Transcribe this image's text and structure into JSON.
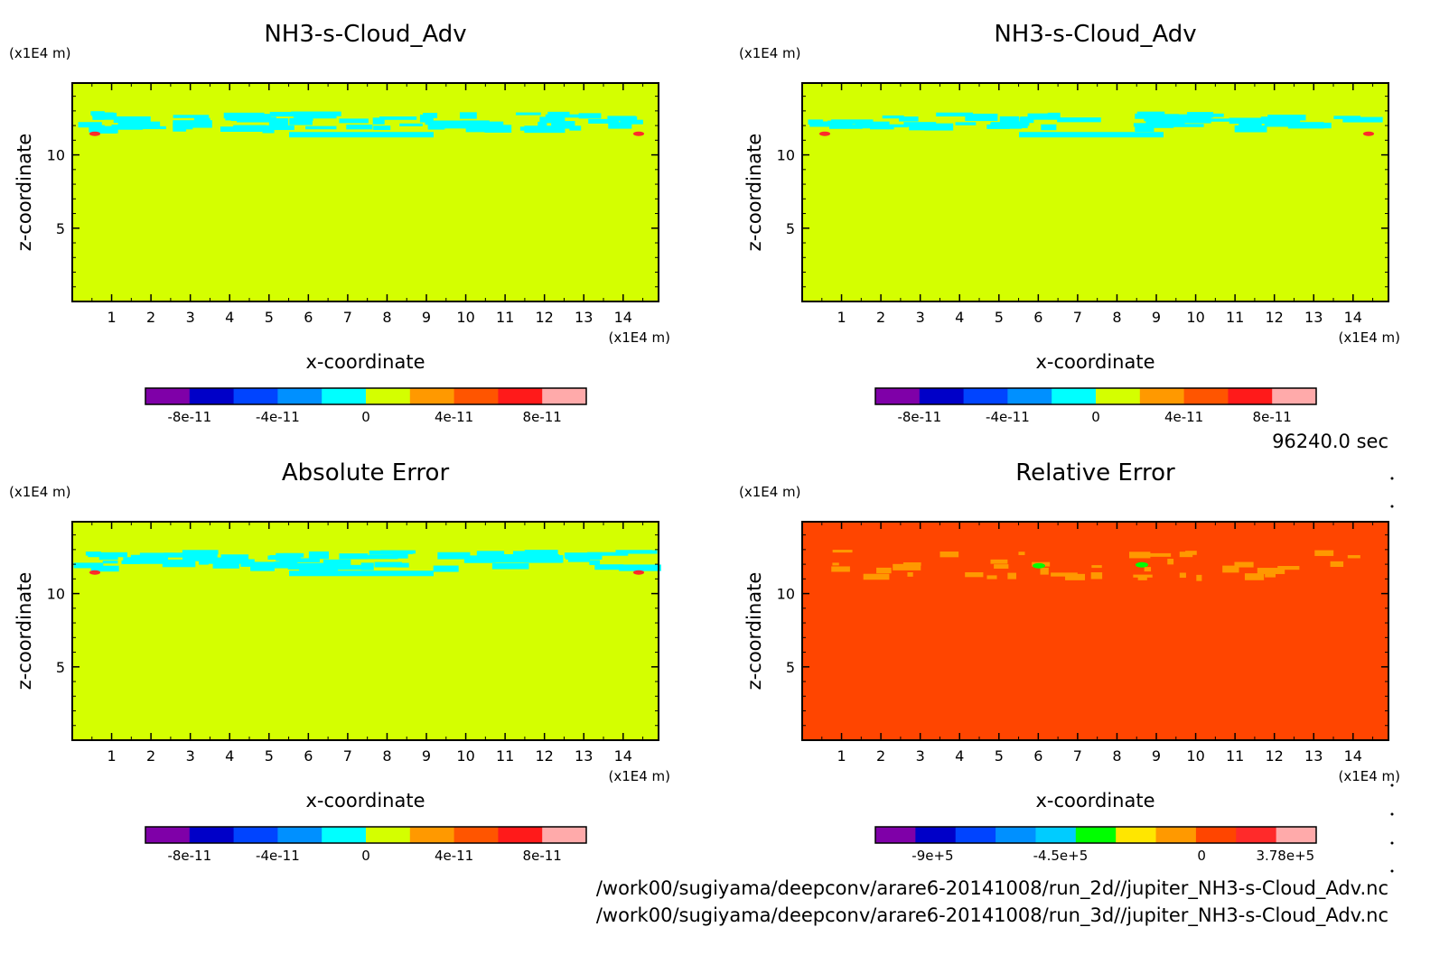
{
  "timestamp": "96240.0 sec",
  "paths": [
    "/work00/sugiyama/deepconv/arare6-20141008/run_2d//jupiter_NH3-s-Cloud_Adv.nc",
    "/work00/sugiyama/deepconv/arare6-20141008/run_3d//jupiter_NH3-s-Cloud_Adv.nc"
  ],
  "colors": {
    "background_field": "#d4ff00",
    "background_relative": "#ff4500",
    "cloud_band": "#00ffff",
    "warm_spot": "#ff9900",
    "hot_spot": "#ff2a2a"
  },
  "chart_data": [
    {
      "type": "heatmap",
      "title": "NH3-s-Cloud_Adv",
      "xlabel": "x-coordinate",
      "ylabel": "z-coordinate",
      "xunit": "(x1E4 m)",
      "yunit": "(x1E4 m)",
      "xlim": [
        0,
        14.9
      ],
      "ylim": [
        0,
        14.9
      ],
      "xticks": [
        "1",
        "2",
        "3",
        "4",
        "5",
        "6",
        "7",
        "8",
        "9",
        "10",
        "11",
        "12",
        "13",
        "14"
      ],
      "yticks": [
        "10",
        "5"
      ],
      "field_value": 0,
      "feature_band_z": [
        11,
        13
      ],
      "colorbar": {
        "colors": [
          "#7f00a8",
          "#0000c8",
          "#0044ff",
          "#0090ff",
          "#00ffff",
          "#d4ff00",
          "#ff9900",
          "#ff5500",
          "#ff1a1a",
          "#ffaaaa"
        ],
        "ticks": [
          "-8e-11",
          "-4e-11",
          "0",
          "4e-11",
          "8e-11"
        ]
      }
    },
    {
      "type": "heatmap",
      "title": "NH3-s-Cloud_Adv",
      "xlabel": "x-coordinate",
      "ylabel": "z-coordinate",
      "xunit": "(x1E4 m)",
      "yunit": "(x1E4 m)",
      "xlim": [
        0,
        14.9
      ],
      "ylim": [
        0,
        14.9
      ],
      "xticks": [
        "1",
        "2",
        "3",
        "4",
        "5",
        "6",
        "7",
        "8",
        "9",
        "10",
        "11",
        "12",
        "13",
        "14"
      ],
      "yticks": [
        "10",
        "5"
      ],
      "field_value": 0,
      "feature_band_z": [
        11,
        13
      ],
      "colorbar": {
        "colors": [
          "#7f00a8",
          "#0000c8",
          "#0044ff",
          "#0090ff",
          "#00ffff",
          "#d4ff00",
          "#ff9900",
          "#ff5500",
          "#ff1a1a",
          "#ffaaaa"
        ],
        "ticks": [
          "-8e-11",
          "-4e-11",
          "0",
          "4e-11",
          "8e-11"
        ]
      }
    },
    {
      "type": "heatmap",
      "title": "Absolute Error",
      "xlabel": "x-coordinate",
      "ylabel": "z-coordinate",
      "xunit": "(x1E4 m)",
      "yunit": "(x1E4 m)",
      "xlim": [
        0,
        14.9
      ],
      "ylim": [
        0,
        14.9
      ],
      "xticks": [
        "1",
        "2",
        "3",
        "4",
        "5",
        "6",
        "7",
        "8",
        "9",
        "10",
        "11",
        "12",
        "13",
        "14"
      ],
      "yticks": [
        "10",
        "5"
      ],
      "field_value": 0,
      "feature_band_z": [
        11,
        13
      ],
      "colorbar": {
        "colors": [
          "#7f00a8",
          "#0000c8",
          "#0044ff",
          "#0090ff",
          "#00ffff",
          "#d4ff00",
          "#ff9900",
          "#ff5500",
          "#ff1a1a",
          "#ffaaaa"
        ],
        "ticks": [
          "-8e-11",
          "-4e-11",
          "0",
          "4e-11",
          "8e-11"
        ]
      }
    },
    {
      "type": "heatmap",
      "title": "Relative Error",
      "xlabel": "x-coordinate",
      "ylabel": "z-coordinate",
      "xunit": "(x1E4 m)",
      "yunit": "(x1E4 m)",
      "xlim": [
        0,
        14.9
      ],
      "ylim": [
        0,
        14.9
      ],
      "xticks": [
        "1",
        "2",
        "3",
        "4",
        "5",
        "6",
        "7",
        "8",
        "9",
        "10",
        "11",
        "12",
        "13",
        "14"
      ],
      "yticks": [
        "10",
        "5"
      ],
      "feature_band_z": [
        11,
        13
      ],
      "colorbar": {
        "colors": [
          "#7f00a8",
          "#0000c8",
          "#0044ff",
          "#0090ff",
          "#00ccff",
          "#00ff00",
          "#ffe600",
          "#ff9900",
          "#ff4500",
          "#ff2a2a",
          "#ffaaaa"
        ],
        "ticks": [
          "-9e+5",
          "-4.5e+5",
          "0",
          "3.78e+5"
        ]
      }
    }
  ]
}
